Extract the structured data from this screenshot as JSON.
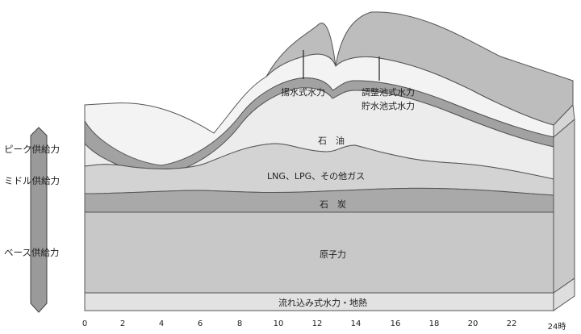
{
  "diagram": {
    "supply_labels": {
      "peak": "ピーク供給力",
      "middle": "ミドル供給力",
      "base": "ベース供給力"
    },
    "layers": {
      "pumped": "揚水式水力",
      "regulating_1": "調整池式水力",
      "regulating_2": "貯水池式水力",
      "oil": "石　油",
      "lng": "LNG、LPG、その他ガス",
      "coal": "石　炭",
      "nuclear": "原子力",
      "runofriver": "流れ込み式水力・地熱"
    },
    "x_ticks": [
      "0",
      "2",
      "4",
      "6",
      "8",
      "10",
      "12",
      "14",
      "16",
      "18",
      "20",
      "22",
      "24時"
    ]
  },
  "colors": {
    "runofriver": "#e2e2e2",
    "nuclear": "#c8c8c8",
    "coal": "#a9a9a9",
    "lng": "#d3d3d3",
    "oil": "#ececec",
    "band": "#a2a2a2",
    "pumped_face": "#f3f3f3",
    "top": "#bdbdbd",
    "arrow": "#9a9a9a"
  }
}
